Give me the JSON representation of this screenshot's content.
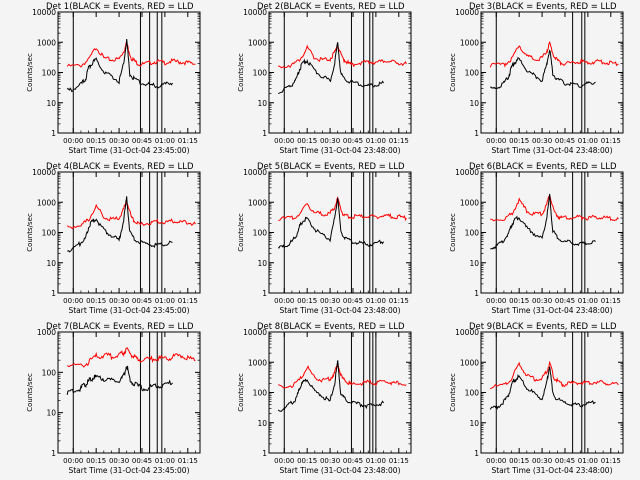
{
  "window": {
    "title": ""
  },
  "chart_data": [
    {
      "type": "line",
      "title": "Det 1(BLACK = Events, RED = LLD",
      "xlabel": "Start Time (31-Oct-04 23:45:00)",
      "ylabel": "Counts/sec",
      "y_scale": "log",
      "ylim": [
        1,
        10000
      ],
      "y_ticks": [
        "1",
        "10",
        "100",
        "1000",
        "10000"
      ],
      "x_ticks": [
        "00:00",
        "00:15",
        "00:30",
        "00:45",
        "01:00",
        "01:15"
      ],
      "xlim_minutes": [
        -10,
        83
      ],
      "grid": false,
      "series": [
        {
          "color": "#ff0000",
          "x_minutes": [
            -4,
            5,
            10,
            15,
            20,
            25,
            30,
            33,
            35,
            38,
            41,
            44,
            50,
            55,
            60,
            65,
            70,
            75,
            80
          ],
          "values": [
            160,
            170,
            260,
            700,
            300,
            260,
            280,
            500,
            900,
            300,
            220,
            180,
            210,
            230,
            210,
            240,
            220,
            210,
            190
          ]
        },
        {
          "color": "#000000",
          "x_minutes": [
            -4,
            0,
            5,
            8,
            10,
            12,
            15,
            20,
            25,
            30,
            33,
            35,
            37,
            40,
            45,
            50,
            55,
            60,
            65
          ],
          "values": [
            25,
            28,
            40,
            60,
            140,
            200,
            260,
            110,
            75,
            50,
            200,
            1200,
            90,
            60,
            45,
            40,
            35,
            40,
            45
          ]
        }
      ],
      "vertical_markers_minutes": [
        0,
        44,
        50,
        55,
        58
      ]
    },
    {
      "type": "line",
      "title": "Det 2(BLACK = Events, RED = LLD",
      "xlabel": "Start Time (31-Oct-04 23:48:00)",
      "ylabel": "Counts/sec",
      "y_scale": "log",
      "ylim": [
        1,
        10000
      ],
      "y_ticks": [
        "1",
        "10",
        "100",
        "1000",
        "10000"
      ],
      "x_ticks": [
        "00:00",
        "00:15",
        "00:30",
        "00:45",
        "01:00",
        "01:15"
      ],
      "xlim_minutes": [
        -10,
        83
      ],
      "grid": false,
      "series": [
        {
          "color": "#ff0000",
          "x_minutes": [
            -4,
            5,
            10,
            15,
            20,
            25,
            30,
            33,
            35,
            38,
            41,
            44,
            50,
            55,
            60,
            65,
            70,
            75,
            80
          ],
          "values": [
            160,
            175,
            260,
            650,
            300,
            260,
            280,
            450,
            800,
            300,
            220,
            180,
            210,
            230,
            210,
            240,
            220,
            210,
            190
          ]
        },
        {
          "color": "#000000",
          "x_minutes": [
            -4,
            0,
            5,
            8,
            10,
            12,
            15,
            20,
            25,
            30,
            33,
            35,
            37,
            40,
            45,
            50,
            55,
            60,
            65
          ],
          "values": [
            22,
            28,
            40,
            60,
            130,
            200,
            250,
            110,
            75,
            50,
            200,
            1000,
            90,
            60,
            45,
            40,
            35,
            40,
            45
          ]
        }
      ],
      "vertical_markers_minutes": [
        0,
        44,
        52,
        56,
        58
      ]
    },
    {
      "type": "line",
      "title": "Det 3(BLACK = Events, RED = LLD",
      "xlabel": "Start Time (31-Oct-04 23:48:00)",
      "ylabel": "Counts/sec",
      "y_scale": "log",
      "ylim": [
        1,
        10000
      ],
      "y_ticks": [
        "1",
        "10",
        "100",
        "1000",
        "10000"
      ],
      "x_ticks": [
        "00:00",
        "00:15",
        "00:30",
        "00:45",
        "01:00",
        "01:15"
      ],
      "xlim_minutes": [
        -10,
        83
      ],
      "grid": false,
      "series": [
        {
          "color": "#ff0000",
          "x_minutes": [
            -4,
            5,
            10,
            15,
            20,
            25,
            30,
            33,
            35,
            38,
            41,
            44,
            50,
            55,
            60,
            65,
            70,
            75,
            80
          ],
          "values": [
            170,
            180,
            280,
            800,
            350,
            280,
            300,
            500,
            900,
            320,
            230,
            190,
            210,
            230,
            210,
            230,
            220,
            210,
            190
          ]
        },
        {
          "color": "#000000",
          "x_minutes": [
            -4,
            0,
            5,
            8,
            10,
            12,
            15,
            20,
            25,
            30,
            33,
            35,
            37,
            40,
            45,
            50,
            55,
            60,
            65
          ],
          "values": [
            28,
            30,
            45,
            70,
            150,
            220,
            280,
            120,
            80,
            55,
            180,
            600,
            90,
            60,
            45,
            40,
            38,
            42,
            48
          ]
        }
      ],
      "vertical_markers_minutes": [
        0,
        50,
        56,
        58
      ]
    },
    {
      "type": "line",
      "title": "Det 4(BLACK = Events, RED = LLD",
      "xlabel": "Start Time (31-Oct-04 23:45:00)",
      "ylabel": "Counts/sec",
      "y_scale": "log",
      "ylim": [
        1,
        10000
      ],
      "y_ticks": [
        "1",
        "10",
        "100",
        "1000",
        "10000"
      ],
      "x_ticks": [
        "00:00",
        "00:15",
        "00:30",
        "00:45",
        "01:00",
        "01:15"
      ],
      "xlim_minutes": [
        -10,
        83
      ],
      "grid": false,
      "series": [
        {
          "color": "#ff0000",
          "x_minutes": [
            -4,
            5,
            10,
            15,
            20,
            25,
            30,
            33,
            35,
            38,
            41,
            44,
            50,
            55,
            60,
            65,
            70,
            75,
            80
          ],
          "values": [
            150,
            170,
            260,
            750,
            330,
            270,
            290,
            600,
            1100,
            320,
            220,
            180,
            210,
            230,
            210,
            240,
            220,
            210,
            190
          ]
        },
        {
          "color": "#000000",
          "x_minutes": [
            -4,
            0,
            5,
            8,
            10,
            12,
            15,
            20,
            25,
            30,
            33,
            35,
            37,
            40,
            45,
            50,
            55,
            60,
            65
          ],
          "values": [
            25,
            30,
            45,
            65,
            150,
            220,
            280,
            120,
            80,
            55,
            250,
            1500,
            100,
            60,
            45,
            40,
            38,
            42,
            48
          ]
        }
      ],
      "vertical_markers_minutes": [
        0,
        44,
        50,
        55,
        58
      ]
    },
    {
      "type": "line",
      "title": "Det 5(BLACK = Events, RED = LLD",
      "xlabel": "Start Time (31-Oct-04 23:48:00)",
      "ylabel": "Counts/sec",
      "y_scale": "log",
      "ylim": [
        1,
        10000
      ],
      "y_ticks": [
        "1",
        "10",
        "100",
        "1000",
        "10000"
      ],
      "x_ticks": [
        "00:00",
        "00:15",
        "00:30",
        "00:45",
        "01:00",
        "01:15"
      ],
      "xlim_minutes": [
        -10,
        83
      ],
      "grid": false,
      "series": [
        {
          "color": "#ff0000",
          "x_minutes": [
            -4,
            5,
            10,
            15,
            20,
            25,
            30,
            33,
            35,
            38,
            41,
            44,
            50,
            55,
            60,
            65,
            70,
            75,
            80
          ],
          "values": [
            280,
            300,
            400,
            900,
            450,
            400,
            420,
            700,
            1300,
            450,
            350,
            330,
            340,
            350,
            330,
            360,
            340,
            330,
            300
          ]
        },
        {
          "color": "#000000",
          "x_minutes": [
            -4,
            0,
            5,
            8,
            10,
            12,
            15,
            20,
            25,
            30,
            33,
            35,
            37,
            40,
            45,
            50,
            55,
            60,
            65
          ],
          "values": [
            30,
            35,
            50,
            80,
            160,
            240,
            300,
            130,
            85,
            60,
            300,
            1400,
            110,
            65,
            50,
            45,
            40,
            45,
            50
          ]
        }
      ],
      "vertical_markers_minutes": [
        0,
        44,
        52,
        56,
        58
      ]
    },
    {
      "type": "line",
      "title": "Det 6(BLACK = Events, RED = LLD",
      "xlabel": "Start Time (31-Oct-04 23:48:00)",
      "ylabel": "Counts/sec",
      "y_scale": "log",
      "ylim": [
        1,
        10000
      ],
      "y_ticks": [
        "1",
        "10",
        "100",
        "1000",
        "10000"
      ],
      "x_ticks": [
        "00:00",
        "00:15",
        "00:30",
        "00:45",
        "01:00",
        "01:15"
      ],
      "xlim_minutes": [
        -10,
        83
      ],
      "grid": false,
      "series": [
        {
          "color": "#ff0000",
          "x_minutes": [
            -4,
            5,
            10,
            15,
            20,
            25,
            30,
            33,
            35,
            38,
            41,
            44,
            50,
            55,
            60,
            65,
            70,
            75,
            80
          ],
          "values": [
            250,
            280,
            400,
            1200,
            500,
            400,
            420,
            800,
            1800,
            450,
            330,
            300,
            310,
            320,
            300,
            320,
            310,
            300,
            280
          ]
        },
        {
          "color": "#000000",
          "x_minutes": [
            -4,
            0,
            5,
            8,
            10,
            12,
            15,
            20,
            25,
            30,
            33,
            35,
            37,
            40,
            45,
            50,
            55,
            60,
            65
          ],
          "values": [
            30,
            35,
            55,
            90,
            180,
            260,
            320,
            140,
            90,
            60,
            300,
            1600,
            110,
            65,
            50,
            45,
            40,
            45,
            50
          ]
        }
      ],
      "vertical_markers_minutes": [
        0,
        50,
        56,
        58
      ]
    },
    {
      "type": "line",
      "title": "Det 7(BLACK = Events, RED = LLD",
      "xlabel": "Start Time (31-Oct-04 23:45:00)",
      "ylabel": "Counts/sec",
      "y_scale": "log",
      "ylim": [
        1,
        1000
      ],
      "y_ticks": [
        "1",
        "10",
        "100",
        "1000"
      ],
      "x_ticks": [
        "00:00",
        "00:15",
        "00:30",
        "00:45",
        "01:00",
        "01:15"
      ],
      "xlim_minutes": [
        -10,
        83
      ],
      "grid": false,
      "series": [
        {
          "color": "#ff0000",
          "x_minutes": [
            -4,
            5,
            10,
            15,
            20,
            25,
            30,
            33,
            35,
            38,
            41,
            44,
            50,
            55,
            60,
            65,
            70,
            75,
            80
          ],
          "values": [
            150,
            140,
            180,
            250,
            260,
            250,
            260,
            300,
            380,
            280,
            220,
            200,
            210,
            230,
            210,
            240,
            260,
            230,
            200
          ]
        },
        {
          "color": "#000000",
          "x_minutes": [
            -4,
            0,
            5,
            8,
            10,
            12,
            15,
            20,
            25,
            30,
            33,
            35,
            37,
            40,
            45,
            50,
            55,
            60,
            65
          ],
          "values": [
            30,
            35,
            40,
            50,
            60,
            70,
            75,
            70,
            65,
            60,
            80,
            150,
            70,
            50,
            40,
            42,
            45,
            50,
            55
          ]
        }
      ],
      "vertical_markers_minutes": [
        0,
        44,
        50,
        55,
        58
      ]
    },
    {
      "type": "line",
      "title": "Det 8(BLACK = Events, RED = LLD",
      "xlabel": "Start Time (31-Oct-04 23:48:00)",
      "ylabel": "Counts/sec",
      "y_scale": "log",
      "ylim": [
        1,
        10000
      ],
      "y_ticks": [
        "1",
        "10",
        "100",
        "1000",
        "10000"
      ],
      "x_ticks": [
        "00:00",
        "00:15",
        "00:30",
        "00:45",
        "01:00",
        "01:15"
      ],
      "xlim_minutes": [
        -10,
        83
      ],
      "grid": false,
      "series": [
        {
          "color": "#ff0000",
          "x_minutes": [
            -4,
            5,
            10,
            15,
            20,
            25,
            30,
            33,
            35,
            38,
            41,
            44,
            50,
            55,
            60,
            65,
            70,
            75,
            80
          ],
          "values": [
            160,
            170,
            250,
            700,
            300,
            260,
            280,
            450,
            850,
            300,
            220,
            180,
            200,
            220,
            200,
            230,
            210,
            200,
            180
          ]
        },
        {
          "color": "#000000",
          "x_minutes": [
            -4,
            0,
            5,
            8,
            10,
            12,
            15,
            20,
            25,
            30,
            33,
            35,
            37,
            40,
            45,
            50,
            55,
            60,
            65
          ],
          "values": [
            25,
            30,
            45,
            65,
            140,
            210,
            260,
            110,
            75,
            50,
            200,
            1100,
            90,
            60,
            45,
            40,
            35,
            40,
            45
          ]
        }
      ],
      "vertical_markers_minutes": [
        0,
        44,
        52,
        56,
        58,
        60
      ]
    },
    {
      "type": "line",
      "title": "Det 9(BLACK = Events, RED = LLD",
      "xlabel": "Start Time (31-Oct-04 23:48:00)",
      "ylabel": "Counts/sec",
      "y_scale": "log",
      "ylim": [
        1,
        10000
      ],
      "y_ticks": [
        "1",
        "10",
        "100",
        "1000",
        "10000"
      ],
      "x_ticks": [
        "00:00",
        "00:15",
        "00:30",
        "00:45",
        "01:00",
        "01:15"
      ],
      "xlim_minutes": [
        -10,
        83
      ],
      "grid": false,
      "series": [
        {
          "color": "#ff0000",
          "x_minutes": [
            -4,
            5,
            10,
            15,
            20,
            25,
            30,
            33,
            35,
            38,
            41,
            44,
            50,
            55,
            60,
            65,
            70,
            75,
            80
          ],
          "values": [
            150,
            170,
            280,
            900,
            360,
            280,
            290,
            500,
            900,
            300,
            220,
            180,
            200,
            220,
            200,
            220,
            210,
            200,
            180
          ]
        },
        {
          "color": "#000000",
          "x_minutes": [
            -4,
            0,
            5,
            8,
            10,
            12,
            15,
            20,
            25,
            30,
            33,
            35,
            37,
            40,
            45,
            50,
            55,
            60,
            65
          ],
          "values": [
            28,
            32,
            50,
            80,
            180,
            260,
            330,
            140,
            90,
            60,
            200,
            800,
            90,
            60,
            45,
            40,
            38,
            42,
            48
          ]
        }
      ],
      "vertical_markers_minutes": [
        0,
        50,
        56,
        58
      ]
    }
  ]
}
